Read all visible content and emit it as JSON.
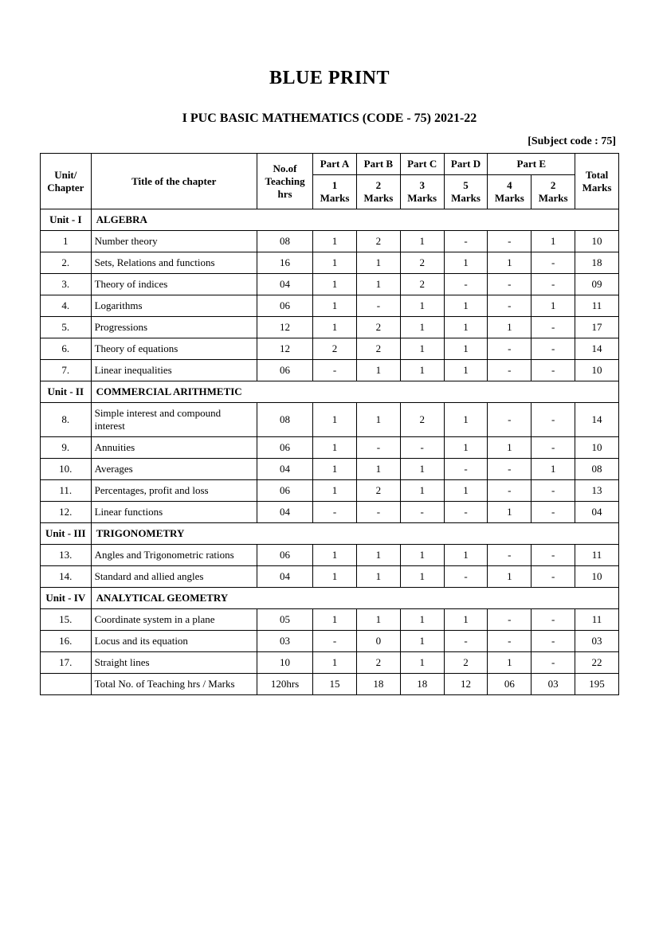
{
  "page": {
    "title": "BLUE PRINT",
    "subtitle": "I PUC BASIC MATHEMATICS (CODE - 75) 2021-22",
    "subject_code": "[Subject code : 75]"
  },
  "header": {
    "unit": "Unit/ Chapter",
    "title": "Title of the chapter",
    "hrs": "No.of Teaching hrs",
    "partA": "Part A",
    "partB": "Part B",
    "partC": "Part C",
    "partD": "Part D",
    "partE": "Part E",
    "total": "Total Marks",
    "marksA": "1 Marks",
    "marksB": "2 Marks",
    "marksC": "3 Marks",
    "marksD": "5 Marks",
    "marksE1": "4 Marks",
    "marksE2": "2 Marks"
  },
  "units": {
    "u1": {
      "label": "Unit - I",
      "name": "ALGEBRA"
    },
    "u2": {
      "label": "Unit - II",
      "name": "COMMERCIAL ARITHMETIC"
    },
    "u3": {
      "label": "Unit - III",
      "name": "TRIGONOMETRY"
    },
    "u4": {
      "label": "Unit - IV",
      "name": "ANALYTICAL GEOMETRY"
    }
  },
  "rows": {
    "r1": {
      "no": "1",
      "title": "Number theory",
      "hrs": "08",
      "a": "1",
      "b": "2",
      "c": "1",
      "d": "-",
      "e1": "-",
      "e2": "1",
      "tot": "10"
    },
    "r2": {
      "no": "2.",
      "title": "Sets, Relations and functions",
      "hrs": "16",
      "a": "1",
      "b": "1",
      "c": "2",
      "d": "1",
      "e1": "1",
      "e2": "-",
      "tot": "18"
    },
    "r3": {
      "no": "3.",
      "title": "Theory of indices",
      "hrs": "04",
      "a": "1",
      "b": "1",
      "c": "2",
      "d": "-",
      "e1": "-",
      "e2": "-",
      "tot": "09"
    },
    "r4": {
      "no": "4.",
      "title": "Logarithms",
      "hrs": "06",
      "a": "1",
      "b": "-",
      "c": "1",
      "d": "1",
      "e1": "-",
      "e2": "1",
      "tot": "11"
    },
    "r5": {
      "no": "5.",
      "title": "Progressions",
      "hrs": "12",
      "a": "1",
      "b": "2",
      "c": "1",
      "d": "1",
      "e1": "1",
      "e2": "-",
      "tot": "17"
    },
    "r6": {
      "no": "6.",
      "title": "Theory of equations",
      "hrs": "12",
      "a": "2",
      "b": "2",
      "c": "1",
      "d": "1",
      "e1": "-",
      "e2": "-",
      "tot": "14"
    },
    "r7": {
      "no": "7.",
      "title": "Linear inequalities",
      "hrs": "06",
      "a": "-",
      "b": "1",
      "c": "1",
      "d": "1",
      "e1": "-",
      "e2": "-",
      "tot": "10"
    },
    "r8": {
      "no": "8.",
      "title": "Simple interest and compound interest",
      "hrs": "08",
      "a": "1",
      "b": "1",
      "c": "2",
      "d": "1",
      "e1": "-",
      "e2": "-",
      "tot": "14"
    },
    "r9": {
      "no": "9.",
      "title": "Annuities",
      "hrs": "06",
      "a": "1",
      "b": "-",
      "c": "-",
      "d": "1",
      "e1": "1",
      "e2": "-",
      "tot": "10"
    },
    "r10": {
      "no": "10.",
      "title": "Averages",
      "hrs": "04",
      "a": "1",
      "b": "1",
      "c": "1",
      "d": "-",
      "e1": "-",
      "e2": "1",
      "tot": "08"
    },
    "r11": {
      "no": "11.",
      "title": "Percentages, profit and loss",
      "hrs": "06",
      "a": "1",
      "b": "2",
      "c": "1",
      "d": "1",
      "e1": "-",
      "e2": "-",
      "tot": "13"
    },
    "r12": {
      "no": "12.",
      "title": "Linear functions",
      "hrs": "04",
      "a": "-",
      "b": "-",
      "c": "-",
      "d": "-",
      "e1": "1",
      "e2": "-",
      "tot": "04"
    },
    "r13": {
      "no": "13.",
      "title": "Angles and Trigonometric rations",
      "hrs": "06",
      "a": "1",
      "b": "1",
      "c": "1",
      "d": "1",
      "e1": "-",
      "e2": "-",
      "tot": "11"
    },
    "r14": {
      "no": "14.",
      "title": "Standard and allied angles",
      "hrs": "04",
      "a": "1",
      "b": "1",
      "c": "1",
      "d": "-",
      "e1": "1",
      "e2": "-",
      "tot": "10"
    },
    "r15": {
      "no": "15.",
      "title": "Coordinate system in a plane",
      "hrs": "05",
      "a": "1",
      "b": "1",
      "c": "1",
      "d": "1",
      "e1": "-",
      "e2": "-",
      "tot": "11"
    },
    "r16": {
      "no": "16.",
      "title": "Locus and its equation",
      "hrs": "03",
      "a": "-",
      "b": "0",
      "c": "1",
      "d": "-",
      "e1": "-",
      "e2": "-",
      "tot": "03"
    },
    "r17": {
      "no": "17.",
      "title": "Straight lines",
      "hrs": "10",
      "a": "1",
      "b": "2",
      "c": "1",
      "d": "2",
      "e1": "1",
      "e2": "-",
      "tot": "22"
    }
  },
  "total": {
    "label": "Total No. of Teaching hrs / Marks",
    "hrs": "120hrs",
    "a": "15",
    "b": "18",
    "c": "18",
    "d": "12",
    "e1": "06",
    "e2": "03",
    "tot": "195"
  },
  "style": {
    "font_family": "Times New Roman",
    "title_fontsize": 24,
    "subtitle_fontsize": 16,
    "table_fontsize": 13,
    "border_color": "#000000",
    "background_color": "#ffffff",
    "text_color": "#000000"
  }
}
